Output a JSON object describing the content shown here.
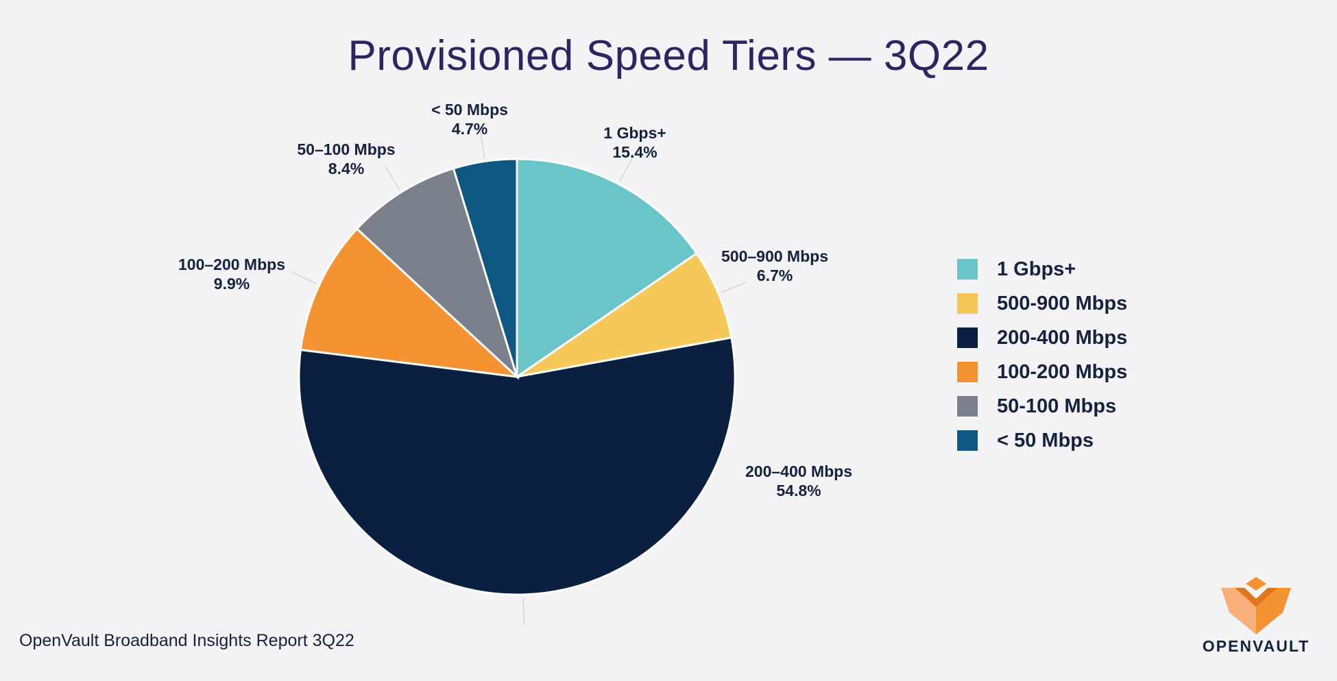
{
  "header": {
    "title": "Provisioned Speed Tiers — 3Q22"
  },
  "chart_data": {
    "type": "pie",
    "title": "Provisioned Speed Tiers — 3Q22",
    "slices": [
      {
        "label": "1 Gbps+",
        "value": 15.4,
        "display": "15.4%",
        "color": "#6ac5c8"
      },
      {
        "label": "500–900 Mbps",
        "value": 6.7,
        "display": "6.7%",
        "color": "#f6c85a"
      },
      {
        "label": "200–400 Mbps",
        "value": 54.8,
        "display": "54.8%",
        "color": "#0b1f40"
      },
      {
        "label": "100–200 Mbps",
        "value": 9.9,
        "display": "9.9%",
        "color": "#f59231"
      },
      {
        "label": "50–100 Mbps",
        "value": 8.4,
        "display": "8.4%",
        "color": "#7a818c"
      },
      {
        "label": "< 50 Mbps",
        "value": 4.7,
        "display": "4.7%",
        "color": "#0e5783"
      }
    ],
    "legend": {
      "position": "right",
      "entries": [
        "1 Gbps+",
        "500-900 Mbps",
        "200-400 Mbps",
        "100-200 Mbps",
        "50-100 Mbps",
        "< 50 Mbps"
      ]
    }
  },
  "footer": {
    "source": "OpenVault Broadband Insights Report 3Q22"
  },
  "logo": {
    "text": "OPENVAULT",
    "icon": "openvault-logo-icon",
    "color": "#f59231"
  }
}
